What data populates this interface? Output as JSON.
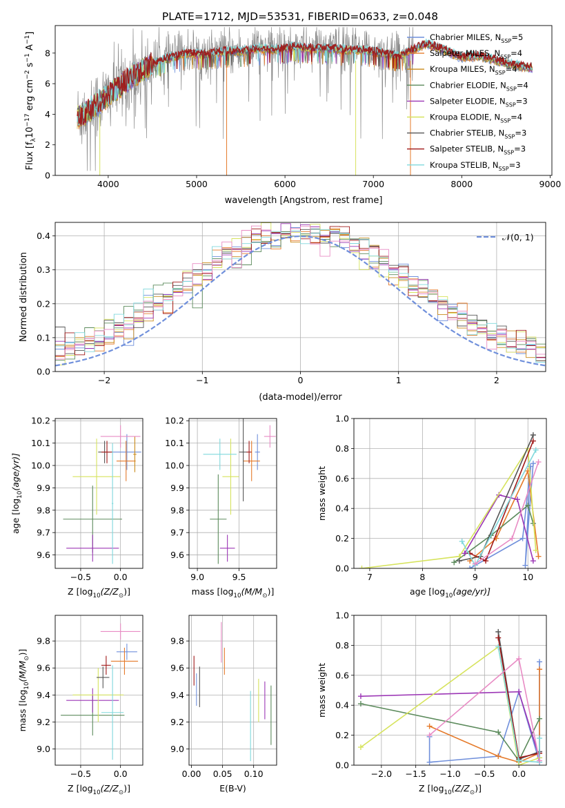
{
  "figure": {
    "title": "PLATE=1712, MJD=53531, FIBERID=0633, z=0.048",
    "series_styles": [
      {
        "label": "Chabrier MILES, N",
        "nssp": "=5",
        "color": "#6f8fdb"
      },
      {
        "label": "Salpeter MILES, N",
        "nssp": "=4",
        "color": "#e57a2a"
      },
      {
        "label": "Kroupa MILES, N",
        "nssp": "=4",
        "color": "#c98a1a"
      },
      {
        "label": "Chabrier ELODIE, N",
        "nssp": "=4",
        "color": "#5b8a5b"
      },
      {
        "label": "Salpeter ELODIE, N",
        "nssp": "=3",
        "color": "#9b35b5"
      },
      {
        "label": "Kroupa ELODIE, N",
        "nssp": "=4",
        "color": "#d6e35c"
      },
      {
        "label": "Chabrier STELIB, N",
        "nssp": "=3",
        "color": "#555555"
      },
      {
        "label": "Salpeter STELIB, N",
        "nssp": "=3",
        "color": "#a01818"
      },
      {
        "label": "Kroupa STELIB, N",
        "nssp": "=3",
        "color": "#7fd8dc"
      }
    ],
    "extra_colors": {
      "pink": "#e88bc4",
      "grey_data": "#8a8a8a",
      "normal_curve": "#6f8fdb"
    }
  },
  "chart_data": [
    {
      "id": "spectrum",
      "type": "line",
      "xlabel": "wavelength [Angstrom, rest frame]",
      "ylabel_main": "Flux [f",
      "ylabel_sub": "λ",
      "ylabel_rest": "10",
      "ylabel_exp1": "−17",
      "ylabel_unit": " erg cm",
      "ylabel_exp2": "−2",
      "ylabel_unit2": " s",
      "ylabel_exp3": "−1",
      "ylabel_unit3": " A",
      "ylabel_exp4": "−1",
      "ylabel_close": "]",
      "xlim": [
        3400,
        9020
      ],
      "ylim": [
        0,
        9.8
      ],
      "xticks": [
        "4000",
        "5000",
        "6000",
        "7000",
        "8000",
        "9000"
      ],
      "xtick_values": [
        4000,
        5000,
        6000,
        7000,
        8000,
        9000
      ],
      "yticks": [
        "0",
        "2",
        "4",
        "6",
        "8"
      ],
      "ytick_values": [
        0,
        2,
        4,
        6,
        8
      ],
      "legend_sub": "SSP",
      "continuum": {
        "x": [
          3650,
          3800,
          3950,
          4100,
          4300,
          4500,
          4700,
          4900,
          5100,
          5300,
          5500,
          5700,
          5900,
          6100,
          6300,
          6500,
          6700,
          6900,
          7100,
          7300,
          7400,
          7600,
          7800,
          8000,
          8200,
          8400,
          8600,
          8800
        ],
        "y": [
          3.8,
          4.3,
          5.0,
          5.7,
          6.6,
          7.3,
          7.7,
          8.0,
          7.9,
          8.1,
          8.1,
          8.3,
          8.2,
          8.4,
          8.3,
          8.3,
          8.2,
          8.2,
          8.0,
          7.8,
          8.1,
          8.6,
          8.2,
          7.7,
          7.8,
          7.5,
          7.2,
          7.0
        ]
      }
    },
    {
      "id": "residuals",
      "type": "bar",
      "xlabel": "(data-model)/error",
      "ylabel": "Normed distribution",
      "xlim": [
        -2.5,
        2.5
      ],
      "ylim": [
        0,
        0.44
      ],
      "xticks": [
        "−2",
        "−1",
        "0",
        "1",
        "2"
      ],
      "xtick_values": [
        -2,
        -1,
        0,
        1,
        2
      ],
      "yticks": [
        "0.0",
        "0.1",
        "0.2",
        "0.3",
        "0.4"
      ],
      "ytick_values": [
        0,
        0.1,
        0.2,
        0.3,
        0.4
      ],
      "legend_text": "𝒩(0, 1)",
      "bin_width": 0.1
    },
    {
      "id": "age-vs-z",
      "type": "scatter",
      "xlabel": "Z [log",
      "xlabel_sub": "10",
      "xlabel_rest": "(Z/Z",
      "xlabel_sub2": "⊙",
      "xlabel_close": ")]",
      "ylabel": "age  [log",
      "ylabel_sub": "10",
      "ylabel_rest": "(age/yr)]",
      "xlim": [
        -0.82,
        0.28
      ],
      "ylim": [
        9.54,
        10.21
      ],
      "xticks": [
        "−0.5",
        "0.0"
      ],
      "xtick_values": [
        -0.5,
        0.0
      ],
      "yticks": [
        "9.6",
        "9.7",
        "9.8",
        "9.9",
        "10.0",
        "10.1",
        "10.2"
      ],
      "ytick_values": [
        9.6,
        9.7,
        9.8,
        9.9,
        10.0,
        10.1,
        10.2
      ],
      "points": [
        {
          "c": 0,
          "x": 0.08,
          "y": 10.06,
          "xe": 0.18,
          "ye": 0.08
        },
        {
          "c": 1,
          "x": 0.07,
          "y": 10.02,
          "xe": 0.12,
          "ye": 0.09
        },
        {
          "c": 2,
          "x": 0.18,
          "y": 10.05,
          "xe": 0.02,
          "ye": 0.08
        },
        {
          "c": 3,
          "x": -0.35,
          "y": 9.76,
          "xe": 0.37,
          "ye": 0.15
        },
        {
          "c": 4,
          "x": -0.35,
          "y": 9.63,
          "xe": 0.33,
          "ye": 0.06
        },
        {
          "c": 5,
          "x": -0.3,
          "y": 9.95,
          "xe": 0.3,
          "ye": 0.17
        },
        {
          "c": 6,
          "x": -0.2,
          "y": 10.06,
          "xe": 0.08,
          "ye": 0.05
        },
        {
          "c": 7,
          "x": -0.17,
          "y": 10.06,
          "xe": 0.07,
          "ye": 0.05
        },
        {
          "c": 8,
          "x": -0.1,
          "y": 9.83,
          "xe": 0.01,
          "ye": 0.27
        },
        {
          "c": 9,
          "x": 0.0,
          "y": 10.13,
          "xe": 0.25,
          "ye": 0.05
        }
      ]
    },
    {
      "id": "age-vs-mass",
      "type": "scatter",
      "xlabel": "mass [log",
      "xlabel_sub": "10",
      "xlabel_rest": "(M/M",
      "xlabel_sub2": "⊙",
      "xlabel_close": ")]",
      "xlim": [
        8.9,
        9.95
      ],
      "ylim": [
        9.54,
        10.21
      ],
      "xticks": [
        "9.0",
        "9.5"
      ],
      "xtick_values": [
        9.0,
        9.5
      ],
      "yticks": [
        "9.6",
        "9.7",
        "9.8",
        "9.9",
        "10.0",
        "10.1",
        "10.2"
      ],
      "ytick_values": [
        9.6,
        9.7,
        9.8,
        9.9,
        10.0,
        10.1,
        10.2
      ],
      "points": [
        {
          "c": 0,
          "x": 9.72,
          "y": 10.06,
          "xe": 0.03,
          "ye": 0.08
        },
        {
          "c": 1,
          "x": 9.65,
          "y": 10.02,
          "xe": 0.1,
          "ye": 0.09
        },
        {
          "c": 3,
          "x": 9.25,
          "y": 9.76,
          "xe": 0.1,
          "ye": 0.2
        },
        {
          "c": 4,
          "x": 9.36,
          "y": 9.63,
          "xe": 0.09,
          "ye": 0.06
        },
        {
          "c": 5,
          "x": 9.4,
          "y": 9.95,
          "xe": 0.1,
          "ye": 0.17
        },
        {
          "c": 6,
          "x": 9.55,
          "y": 10.06,
          "xe": 0.05,
          "ye": 0.22
        },
        {
          "c": 7,
          "x": 9.62,
          "y": 10.06,
          "xe": 0.03,
          "ye": 0.05
        },
        {
          "c": 8,
          "x": 9.27,
          "y": 10.05,
          "xe": 0.2,
          "ye": 0.07
        },
        {
          "c": 9,
          "x": 9.87,
          "y": 10.13,
          "xe": 0.07,
          "ye": 0.05
        }
      ]
    },
    {
      "id": "weight-vs-age",
      "type": "line",
      "xlabel": "age  [log",
      "xlabel_sub": "10",
      "xlabel_rest": "(age/yr)]",
      "ylabel": "mass weight",
      "xlim": [
        6.7,
        10.35
      ],
      "ylim": [
        0,
        1.0
      ],
      "xticks": [
        "7",
        "8",
        "9",
        "10"
      ],
      "xtick_values": [
        7,
        8,
        9,
        10
      ],
      "yticks": [
        "0.0",
        "0.2",
        "0.4",
        "0.6",
        "0.8",
        "1.0"
      ],
      "ytick_values": [
        0,
        0.2,
        0.4,
        0.6,
        0.8,
        1.0
      ],
      "series": [
        {
          "c": 0,
          "x": [
            8.9,
            9.9,
            10.05,
            9.95,
            10.1
          ],
          "y": [
            0.0,
            0.2,
            0.68,
            0.02,
            0.7
          ]
        },
        {
          "c": 1,
          "x": [
            8.9,
            9.4,
            10.0,
            10.2
          ],
          "y": [
            0.05,
            0.2,
            0.65,
            0.08
          ]
        },
        {
          "c": 3,
          "x": [
            8.6,
            9.3,
            10.0,
            10.1
          ],
          "y": [
            0.04,
            0.22,
            0.42,
            0.3
          ]
        },
        {
          "c": 4,
          "x": [
            8.8,
            9.45,
            9.8,
            10.1
          ],
          "y": [
            0.1,
            0.49,
            0.46,
            0.05
          ]
        },
        {
          "c": 5,
          "x": [
            6.85,
            8.7,
            10.0,
            10.15
          ],
          "y": [
            0.0,
            0.08,
            0.8,
            0.12
          ]
        },
        {
          "c": 6,
          "x": [
            8.7,
            9.1,
            10.1
          ],
          "y": [
            0.05,
            0.08,
            0.89
          ]
        },
        {
          "c": 7,
          "x": [
            8.9,
            9.2,
            10.1
          ],
          "y": [
            0.1,
            0.05,
            0.85
          ]
        },
        {
          "c": 8,
          "x": [
            8.75,
            9.0,
            10.15
          ],
          "y": [
            0.18,
            0.02,
            0.79
          ]
        },
        {
          "c": 9,
          "x": [
            9.0,
            9.7,
            10.2
          ],
          "y": [
            0.03,
            0.2,
            0.71
          ]
        }
      ]
    },
    {
      "id": "mass-vs-z",
      "type": "scatter",
      "xlabel": "Z [log",
      "xlabel_sub": "10",
      "xlabel_rest": "(Z/Z",
      "xlabel_sub2": "⊙",
      "xlabel_close": ")]",
      "ylabel": "mass [log",
      "ylabel_sub": "10",
      "ylabel_rest": "(M/M",
      "ylabel_sub2": "⊙",
      "ylabel_close": ")]",
      "xlim": [
        -0.82,
        0.28
      ],
      "ylim": [
        8.88,
        9.99
      ],
      "xticks": [
        "−0.5",
        "0.0"
      ],
      "xtick_values": [
        -0.5,
        0.0
      ],
      "yticks": [
        "9.0",
        "9.2",
        "9.4",
        "9.6",
        "9.8"
      ],
      "ytick_values": [
        9.0,
        9.2,
        9.4,
        9.6,
        9.8
      ],
      "points": [
        {
          "c": 0,
          "x": 0.08,
          "y": 9.72,
          "xe": 0.13,
          "ye": 0.06
        },
        {
          "c": 1,
          "x": 0.05,
          "y": 9.65,
          "xe": 0.17,
          "ye": 0.1
        },
        {
          "c": 3,
          "x": -0.35,
          "y": 9.25,
          "xe": 0.4,
          "ye": 0.15
        },
        {
          "c": 4,
          "x": -0.35,
          "y": 9.36,
          "xe": 0.33,
          "ye": 0.09
        },
        {
          "c": 5,
          "x": -0.28,
          "y": 9.4,
          "xe": 0.32,
          "ye": 0.2
        },
        {
          "c": 6,
          "x": -0.22,
          "y": 9.53,
          "xe": 0.08,
          "ye": 0.08
        },
        {
          "c": 7,
          "x": -0.18,
          "y": 9.62,
          "xe": 0.06,
          "ye": 0.07
        },
        {
          "c": 8,
          "x": -0.1,
          "y": 9.27,
          "xe": 0.14,
          "ye": 0.35
        },
        {
          "c": 9,
          "x": 0.0,
          "y": 9.87,
          "xe": 0.25,
          "ye": 0.06
        }
      ]
    },
    {
      "id": "mass-vs-ebv",
      "type": "scatter",
      "xlabel": "E(B-V)",
      "xlim": [
        -0.004,
        0.137
      ],
      "ylim": [
        8.88,
        9.99
      ],
      "xticks": [
        "0.00",
        "0.05",
        "0.10"
      ],
      "xtick_values": [
        0.0,
        0.05,
        0.1
      ],
      "yticks": [
        "9.0",
        "9.2",
        "9.4",
        "9.6",
        "9.8"
      ],
      "ytick_values": [
        9.0,
        9.2,
        9.4,
        9.6,
        9.8
      ],
      "points": [
        {
          "c": 0,
          "x": 0.008,
          "y": 9.44,
          "xe": 0,
          "ye": 0.12
        },
        {
          "c": 7,
          "x": 0.004,
          "y": 9.58,
          "xe": 0,
          "ye": 0.11
        },
        {
          "c": 6,
          "x": 0.013,
          "y": 9.46,
          "xe": 0,
          "ye": 0.15
        },
        {
          "c": 9,
          "x": 0.048,
          "y": 9.79,
          "xe": 0,
          "ye": 0.15
        },
        {
          "c": 1,
          "x": 0.053,
          "y": 9.65,
          "xe": 0,
          "ye": 0.1
        },
        {
          "c": 8,
          "x": 0.095,
          "y": 9.17,
          "xe": 0,
          "ye": 0.26
        },
        {
          "c": 5,
          "x": 0.108,
          "y": 9.36,
          "xe": 0,
          "ye": 0.16
        },
        {
          "c": 4,
          "x": 0.118,
          "y": 9.36,
          "xe": 0,
          "ye": 0.14
        },
        {
          "c": 3,
          "x": 0.128,
          "y": 9.25,
          "xe": 0,
          "ye": 0.22
        }
      ]
    },
    {
      "id": "weight-vs-z",
      "type": "line",
      "xlabel": "Z [log",
      "xlabel_sub": "10",
      "xlabel_rest": "(Z/Z",
      "xlabel_sub2": "⊙",
      "xlabel_close": ")]",
      "ylabel": "mass weight",
      "xlim": [
        -2.4,
        0.4
      ],
      "ylim": [
        0,
        1.0
      ],
      "xticks": [
        "−2.0",
        "−1.5",
        "−1.0",
        "−0.5",
        "0.0"
      ],
      "xtick_values": [
        -2.0,
        -1.5,
        -1.0,
        -0.5,
        0.0
      ],
      "yticks": [
        "0.0",
        "0.2",
        "0.4",
        "0.6",
        "0.8",
        "1.0"
      ],
      "ytick_values": [
        0,
        0.2,
        0.4,
        0.6,
        0.8,
        1.0
      ],
      "series": [
        {
          "c": 0,
          "x": [
            -1.3,
            -1.3,
            -0.3,
            0.0,
            0.3,
            0.3
          ],
          "y": [
            0.19,
            0.02,
            0.06,
            0.49,
            0.02,
            0.69
          ]
        },
        {
          "c": 1,
          "x": [
            -1.3,
            -0.3,
            0.0,
            0.3,
            0.3
          ],
          "y": [
            0.26,
            0.06,
            0.02,
            0.08,
            0.64
          ]
        },
        {
          "c": 3,
          "x": [
            -2.3,
            -0.3,
            0.0,
            0.3
          ],
          "y": [
            0.41,
            0.22,
            0.03,
            0.31
          ]
        },
        {
          "c": 4,
          "x": [
            -2.3,
            0.0,
            0.3,
            0.3
          ],
          "y": [
            0.46,
            0.49,
            0.05,
            0.09
          ]
        },
        {
          "c": 5,
          "x": [
            -2.3,
            -0.3,
            0.0,
            0.3
          ],
          "y": [
            0.12,
            0.79,
            0.0,
            0.05
          ]
        },
        {
          "c": 6,
          "x": [
            -0.3,
            0.0,
            0.3
          ],
          "y": [
            0.89,
            0.04,
            0.09
          ]
        },
        {
          "c": 7,
          "x": [
            -0.3,
            0.0,
            0.3
          ],
          "y": [
            0.85,
            0.05,
            0.08
          ]
        },
        {
          "c": 8,
          "x": [
            -0.3,
            0.0,
            0.3,
            0.3
          ],
          "y": [
            0.79,
            0.03,
            0.02,
            0.18
          ]
        },
        {
          "c": 9,
          "x": [
            -1.3,
            0.0,
            0.3
          ],
          "y": [
            0.2,
            0.71,
            0.03
          ]
        }
      ]
    }
  ]
}
